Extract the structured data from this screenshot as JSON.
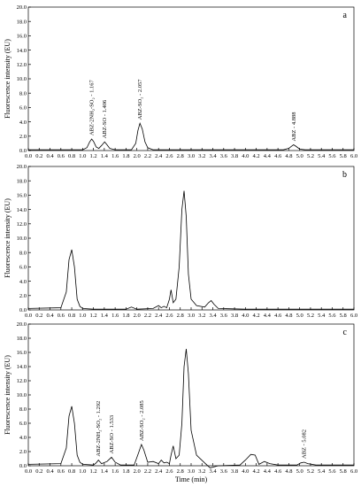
{
  "chart_data": [
    {
      "type": "line",
      "label": "a",
      "ylabel": "Fluorescence intensity (EU)",
      "color": "#000000",
      "x": [
        0,
        0.5,
        1.0,
        1.08,
        1.13,
        1.167,
        1.2,
        1.25,
        1.3,
        1.35,
        1.406,
        1.45,
        1.5,
        1.6,
        1.9,
        1.98,
        2.02,
        2.057,
        2.1,
        2.15,
        2.2,
        2.3,
        3,
        4,
        4.7,
        4.8,
        4.85,
        4.888,
        4.93,
        5.0,
        5.1,
        5.5,
        6.0
      ],
      "values": [
        0.1,
        0.1,
        0.1,
        0.4,
        1.2,
        1.6,
        1.3,
        0.5,
        0.3,
        0.7,
        1.2,
        0.8,
        0.3,
        0.1,
        0.1,
        1.0,
        2.8,
        3.8,
        3.0,
        1.2,
        0.4,
        0.1,
        0.1,
        0.1,
        0.1,
        0.3,
        0.6,
        0.8,
        0.6,
        0.2,
        0.1,
        0.1,
        0.1
      ],
      "annotations": [
        {
          "text": "ABZ-2NH₂-SO₂ - 1.167",
          "x": 1.167,
          "y": 1.6
        },
        {
          "text": "ABZ-SO - 1.406",
          "x": 1.406,
          "y": 1.2
        },
        {
          "text": "ABZ-SO₂ - 2.057",
          "x": 2.057,
          "y": 3.8
        },
        {
          "text": "ABZ - 4.888",
          "x": 4.888,
          "y": 0.8
        }
      ],
      "xlim": [
        0,
        6
      ],
      "ylim": [
        0,
        20
      ],
      "xticks": [
        {
          "value": 0,
          "label": "0.0"
        },
        0.2,
        0.4,
        0.6,
        0.8,
        {
          "value": 1,
          "label": "1.0"
        },
        1.2,
        1.4,
        1.6,
        1.8,
        {
          "value": 2,
          "label": "2.0"
        },
        2.2,
        2.4,
        2.6,
        2.8,
        {
          "value": 3,
          "label": "3.0"
        },
        3.2,
        3.4,
        3.6,
        3.8,
        {
          "value": 4,
          "label": "4.0"
        },
        4.2,
        4.4,
        4.6,
        4.8,
        {
          "value": 5,
          "label": "5.0"
        },
        5.2,
        5.4,
        5.6,
        5.8,
        {
          "value": 6,
          "label": "6.0"
        }
      ],
      "yticks": [
        {
          "value": 0,
          "label": "0.0"
        },
        {
          "value": 2,
          "label": "2.0"
        },
        {
          "value": 4,
          "label": "4.0"
        },
        {
          "value": 6,
          "label": "6.0"
        },
        {
          "value": 8,
          "label": "8.0"
        },
        {
          "value": 10,
          "label": "10.0"
        },
        {
          "value": 12,
          "label": "12.0"
        },
        {
          "value": 14,
          "label": "14.0"
        },
        {
          "value": 16,
          "label": "16.0"
        },
        {
          "value": 18,
          "label": "18.0"
        },
        {
          "value": 20,
          "label": "20.0"
        }
      ]
    },
    {
      "type": "line",
      "label": "b",
      "ylabel": "Fluorescence intensity (EU)",
      "color": "#000000",
      "x": [
        0,
        0.6,
        0.7,
        0.75,
        0.8,
        0.85,
        0.9,
        0.95,
        1.0,
        1.2,
        1.8,
        1.9,
        2.0,
        2.3,
        2.4,
        2.45,
        2.5,
        2.55,
        2.6,
        2.63,
        2.67,
        2.72,
        2.78,
        2.83,
        2.87,
        2.91,
        2.95,
        3.0,
        3.1,
        3.25,
        3.32,
        3.37,
        3.42,
        3.5,
        4,
        5,
        6
      ],
      "values": [
        0.2,
        0.3,
        2.5,
        7.0,
        8.4,
        6.0,
        1.5,
        0.5,
        0.2,
        0.1,
        0.1,
        0.4,
        0.1,
        0.2,
        0.6,
        0.3,
        0.5,
        0.3,
        1.5,
        2.8,
        1.0,
        1.5,
        6.0,
        14.0,
        16.6,
        13.0,
        5.0,
        1.5,
        0.6,
        0.4,
        1.0,
        1.3,
        0.8,
        0.2,
        0.1,
        0.1,
        0.1
      ],
      "xlim": [
        0,
        6
      ],
      "ylim": [
        0,
        20
      ],
      "xticks": [
        {
          "value": 0,
          "label": "0.0"
        },
        0.2,
        0.4,
        0.6,
        0.8,
        {
          "value": 1,
          "label": "1.0"
        },
        1.2,
        1.4,
        1.6,
        1.8,
        {
          "value": 2,
          "label": "2.0"
        },
        2.2,
        2.4,
        2.6,
        2.8,
        {
          "value": 3,
          "label": "3.0"
        },
        3.2,
        3.4,
        3.6,
        3.8,
        {
          "value": 4,
          "label": "4.0"
        },
        4.2,
        4.4,
        4.6,
        4.8,
        {
          "value": 5,
          "label": "5.0"
        },
        5.2,
        5.4,
        5.6,
        5.8,
        {
          "value": 6,
          "label": "6.0"
        }
      ],
      "yticks": [
        {
          "value": 0,
          "label": "0.0"
        },
        {
          "value": 2,
          "label": "2.0"
        },
        {
          "value": 4,
          "label": "4.0"
        },
        {
          "value": 6,
          "label": "6.0"
        },
        {
          "value": 8,
          "label": "8.0"
        },
        {
          "value": 10,
          "label": "10.0"
        },
        {
          "value": 12,
          "label": "12.0"
        },
        {
          "value": 14,
          "label": "14.0"
        },
        {
          "value": 16,
          "label": "16.0"
        },
        {
          "value": 18,
          "label": "18.0"
        },
        {
          "value": 20,
          "label": "20.0"
        }
      ]
    },
    {
      "type": "line",
      "label": "c",
      "ylabel": "Fluorescence intensity (EU)",
      "xlabel": "Time (min)",
      "color": "#000000",
      "x": [
        0,
        0.6,
        0.7,
        0.75,
        0.8,
        0.85,
        0.9,
        0.95,
        1.0,
        1.2,
        1.25,
        1.292,
        1.35,
        1.45,
        1.533,
        1.6,
        1.7,
        1.95,
        2.03,
        2.085,
        2.13,
        2.2,
        2.3,
        2.4,
        2.45,
        2.5,
        2.55,
        2.6,
        2.63,
        2.67,
        2.72,
        2.78,
        2.83,
        2.87,
        2.91,
        2.95,
        3.0,
        3.1,
        3.25,
        3.35,
        3.5,
        3.9,
        4.0,
        4.1,
        4.18,
        4.25,
        4.35,
        4.45,
        4.6,
        4.95,
        5.02,
        5.082,
        5.15,
        5.3,
        6
      ],
      "values": [
        0.2,
        0.3,
        2.5,
        7.0,
        8.4,
        6.0,
        1.5,
        0.5,
        0.2,
        0.1,
        0.4,
        0.8,
        0.3,
        0.6,
        1.2,
        0.5,
        0.1,
        0.1,
        1.8,
        3.0,
        2.2,
        0.5,
        0.6,
        0.3,
        0.8,
        0.4,
        0.5,
        0.3,
        1.5,
        2.8,
        1.0,
        1.5,
        6.0,
        14.0,
        16.5,
        13.0,
        5.0,
        1.5,
        0.4,
        -0.3,
        0,
        0.1,
        0.8,
        1.6,
        1.5,
        0.2,
        0.6,
        0.3,
        0.1,
        0.1,
        0.4,
        0.5,
        0.3,
        0.1,
        0.1
      ],
      "annotations": [
        {
          "text": "ABZ-2NH₂-SO₂ - 1.292",
          "x": 1.292,
          "y": 0.8
        },
        {
          "text": "ABZ-SO - 1.533",
          "x": 1.533,
          "y": 1.2
        },
        {
          "text": "ABZ-SO₂ - 2.085",
          "x": 2.085,
          "y": 3.0
        },
        {
          "text": "ABZ - 5.082",
          "x": 5.082,
          "y": 0.5
        }
      ],
      "xlim": [
        0,
        6
      ],
      "ylim": [
        0,
        20
      ],
      "xticks": [
        {
          "value": 0,
          "label": "0.0"
        },
        0.2,
        0.4,
        0.6,
        0.8,
        {
          "value": 1,
          "label": "1.0"
        },
        1.2,
        1.4,
        1.6,
        1.8,
        {
          "value": 2,
          "label": "2.0"
        },
        2.2,
        2.4,
        2.6,
        2.8,
        {
          "value": 3,
          "label": "3.0"
        },
        3.2,
        3.4,
        3.6,
        3.8,
        {
          "value": 4,
          "label": "4.0"
        },
        4.2,
        4.4,
        4.6,
        4.8,
        {
          "value": 5,
          "label": "5.0"
        },
        5.2,
        5.4,
        5.6,
        5.8,
        {
          "value": 6,
          "label": "6.0"
        }
      ],
      "yticks": [
        {
          "value": 0,
          "label": "0.0"
        },
        {
          "value": 2,
          "label": "2.0"
        },
        {
          "value": 4,
          "label": "4.0"
        },
        {
          "value": 6,
          "label": "6.0"
        },
        {
          "value": 8,
          "label": "8.0"
        },
        {
          "value": 10,
          "label": "10.0"
        },
        {
          "value": 12,
          "label": "12.0"
        },
        {
          "value": 14,
          "label": "14.0"
        },
        {
          "value": 16,
          "label": "16.0"
        },
        {
          "value": 18,
          "label": "18.0"
        },
        {
          "value": 20,
          "label": "20.0"
        }
      ]
    }
  ]
}
